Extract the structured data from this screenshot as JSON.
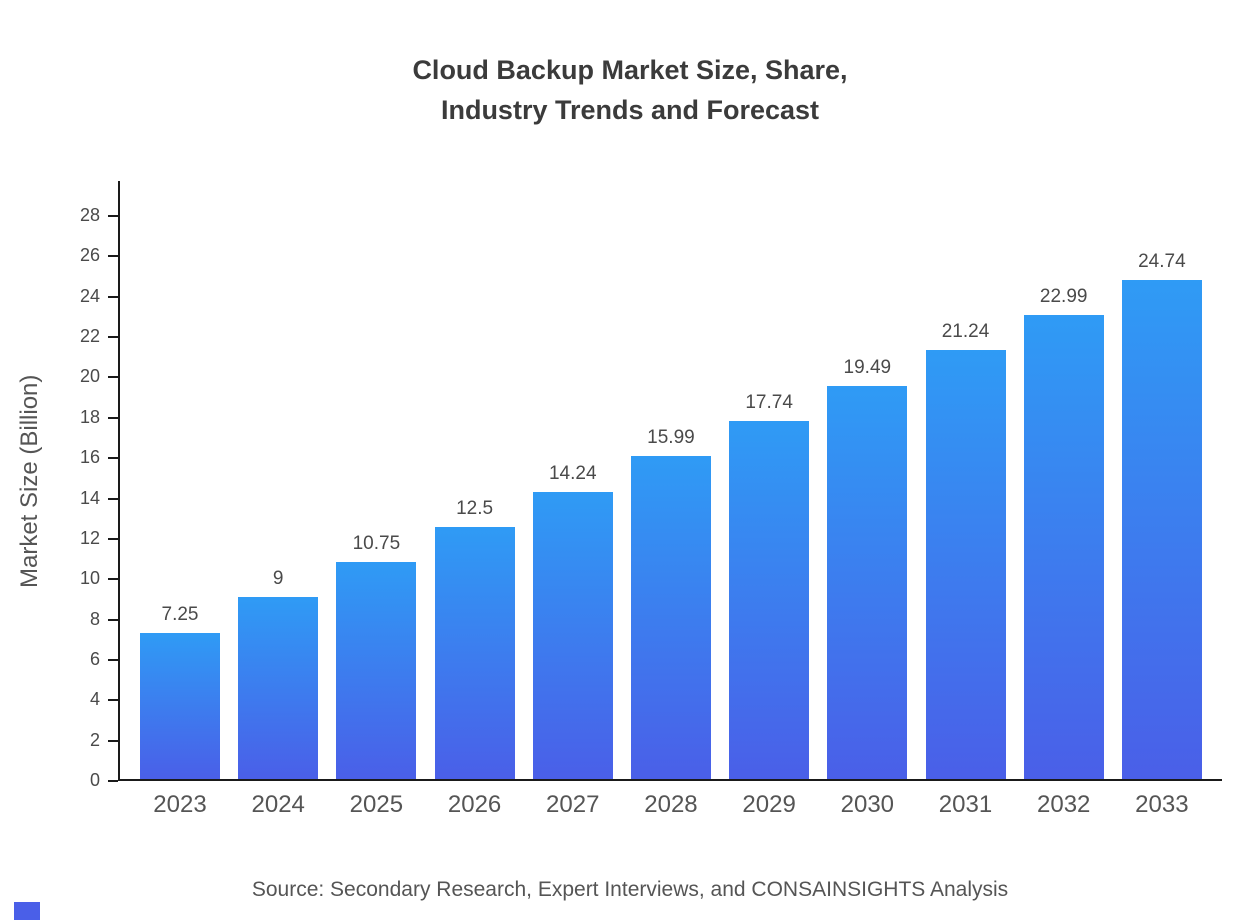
{
  "title": {
    "line1": "Cloud Backup Market Size, Share,",
    "line2": "Industry Trends and Forecast"
  },
  "chart_data": {
    "type": "bar",
    "title": "Cloud Backup Market Size, Share, Industry Trends and Forecast",
    "categories": [
      "2023",
      "2024",
      "2025",
      "2026",
      "2027",
      "2028",
      "2029",
      "2030",
      "2031",
      "2032",
      "2033"
    ],
    "values": [
      7.25,
      9,
      10.75,
      12.5,
      14.24,
      15.99,
      17.74,
      19.49,
      21.24,
      22.99,
      24.74
    ],
    "value_labels": [
      "7.25",
      "9",
      "10.75",
      "12.5",
      "14.24",
      "15.99",
      "17.74",
      "19.49",
      "21.24",
      "22.99",
      "24.74"
    ],
    "xlabel": "",
    "ylabel": "Market Size (Billion)",
    "ylim": [
      0,
      29
    ],
    "yticks": [
      0,
      2,
      4,
      6,
      8,
      10,
      12,
      14,
      16,
      18,
      20,
      22,
      24,
      26,
      28
    ],
    "grid": false,
    "legend": null,
    "bar_gradient": {
      "top": "#2f9bf5",
      "bottom": "#4a5fe8"
    }
  },
  "footer": {
    "source": "Source: Secondary Research, Expert Interviews, and CONSAINSIGHTS Analysis"
  }
}
